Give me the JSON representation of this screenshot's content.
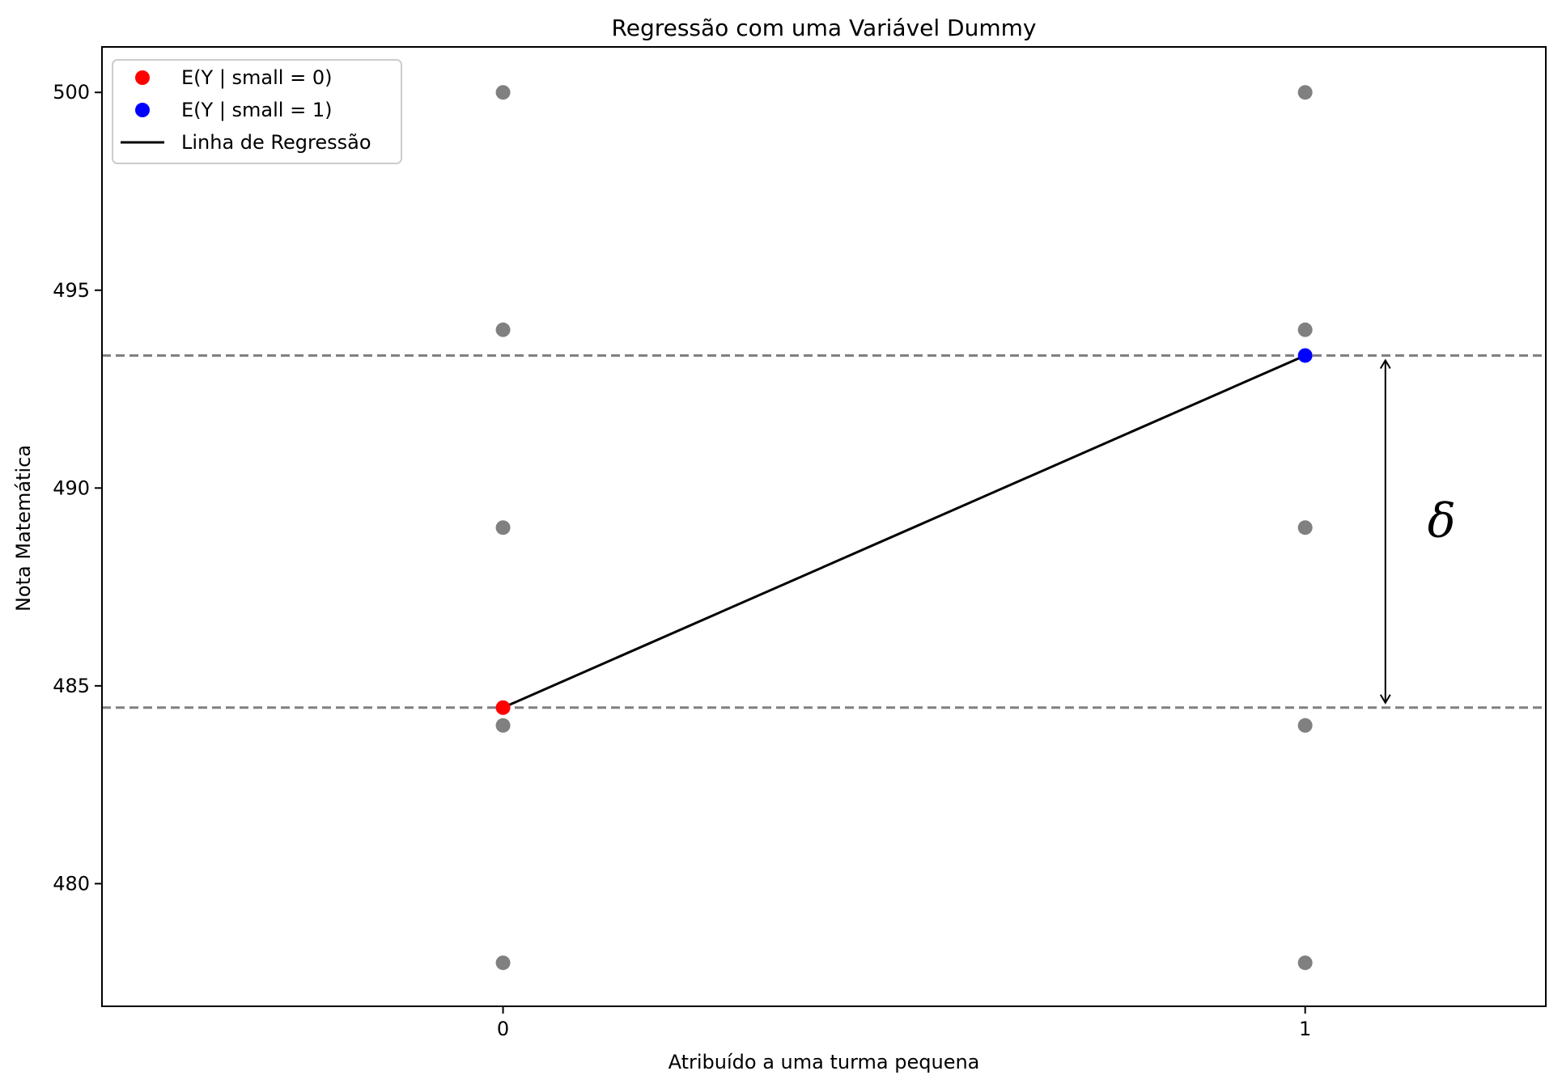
{
  "chart_data": {
    "type": "scatter",
    "title": "Regressão com uma Variável Dummy",
    "xlabel": "Atribuído a uma turma pequena",
    "ylabel": "Nota Matemática",
    "xlim": [
      -0.5,
      1.3
    ],
    "ylim": [
      476.9,
      501.15
    ],
    "xticks": [
      0,
      1
    ],
    "xtick_labels": [
      "0",
      "1"
    ],
    "yticks": [
      480,
      485,
      490,
      495,
      500
    ],
    "ytick_labels": [
      "480",
      "485",
      "490",
      "495",
      "500"
    ],
    "grid": false,
    "legend_position": "top-left",
    "series": [
      {
        "name": "",
        "kind": "scatter",
        "color": "#808080",
        "points": [
          {
            "x": 0,
            "y": 478
          },
          {
            "x": 0,
            "y": 484
          },
          {
            "x": 0,
            "y": 489
          },
          {
            "x": 0,
            "y": 494
          },
          {
            "x": 0,
            "y": 500
          },
          {
            "x": 1,
            "y": 478
          },
          {
            "x": 1,
            "y": 484
          },
          {
            "x": 1,
            "y": 489
          },
          {
            "x": 1,
            "y": 494
          },
          {
            "x": 1,
            "y": 500
          }
        ]
      },
      {
        "name": "E(Y | small = 0)",
        "kind": "point",
        "color": "#ff0000",
        "points": [
          {
            "x": 0,
            "y": 484.45
          }
        ]
      },
      {
        "name": "E(Y | small = 1)",
        "kind": "point",
        "color": "#0000ff",
        "points": [
          {
            "x": 1,
            "y": 493.35
          }
        ]
      },
      {
        "name": "Linha de Regressão",
        "kind": "line",
        "color": "#000000",
        "points": [
          {
            "x": 0,
            "y": 484.45
          },
          {
            "x": 1,
            "y": 493.35
          }
        ]
      }
    ],
    "hlines": [
      {
        "y": 493.35,
        "color": "#808080",
        "style": "dashed"
      },
      {
        "y": 484.45,
        "color": "#808080",
        "style": "dashed"
      }
    ],
    "annotation": {
      "text": "δ",
      "arrow_x": 1.1,
      "arrow_from": 484.45,
      "arrow_to": 493.35,
      "text_x": 1.17,
      "text_y": 489.1
    }
  }
}
